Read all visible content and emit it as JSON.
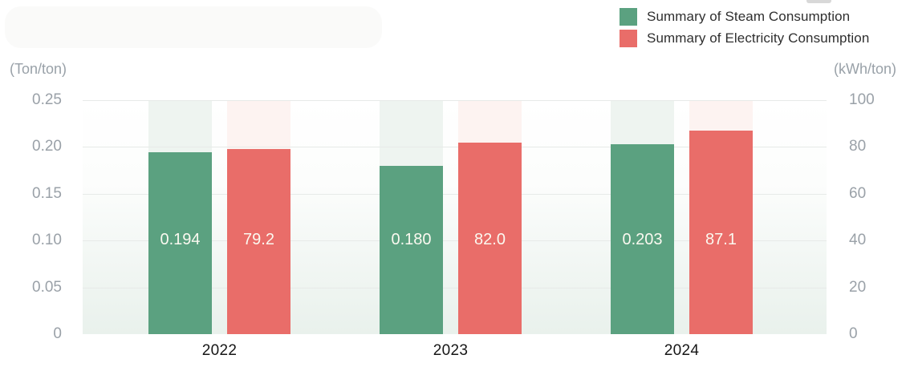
{
  "blurred_title": "",
  "chart_data": {
    "type": "bar",
    "title": "",
    "categories": [
      "2022",
      "2023",
      "2024"
    ],
    "series": [
      {
        "name": "Summary of Steam Consumption",
        "axis": "left",
        "unit": "Ton/ton",
        "color": "#5BA180",
        "track_color": "#EEF4F0",
        "values": [
          0.194,
          0.18,
          0.203
        ],
        "value_labels": [
          "0.194",
          "0.180",
          "0.203"
        ]
      },
      {
        "name": "Summary of Electricity Consumption",
        "axis": "right",
        "unit": "kWh/ton",
        "color": "#E96D69",
        "track_color": "#FDF3F1",
        "values": [
          79.2,
          82.0,
          87.1
        ],
        "value_labels": [
          "79.2",
          "82.0",
          "87.1"
        ]
      }
    ],
    "axes": {
      "left": {
        "unit_label": "(Ton/ton)",
        "min": 0,
        "max": 0.25,
        "ticks": [
          "0.25",
          "0.20",
          "0.15",
          "0.10",
          "0.05",
          "0"
        ]
      },
      "right": {
        "unit_label": "(kWh/ton)",
        "min": 0,
        "max": 100,
        "ticks": [
          "100",
          "80",
          "60",
          "40",
          "20",
          "0"
        ]
      }
    },
    "legend_position": "top-right",
    "grid": true,
    "colors": {
      "gridline": "#E7EAE8",
      "tick_text": "#9AA1A8",
      "category_text": "#161616",
      "legend_text": "#2F2F2F",
      "value_label_text": "#FBF9F0",
      "plot_bg_bottom": "#E9F1EC"
    }
  }
}
